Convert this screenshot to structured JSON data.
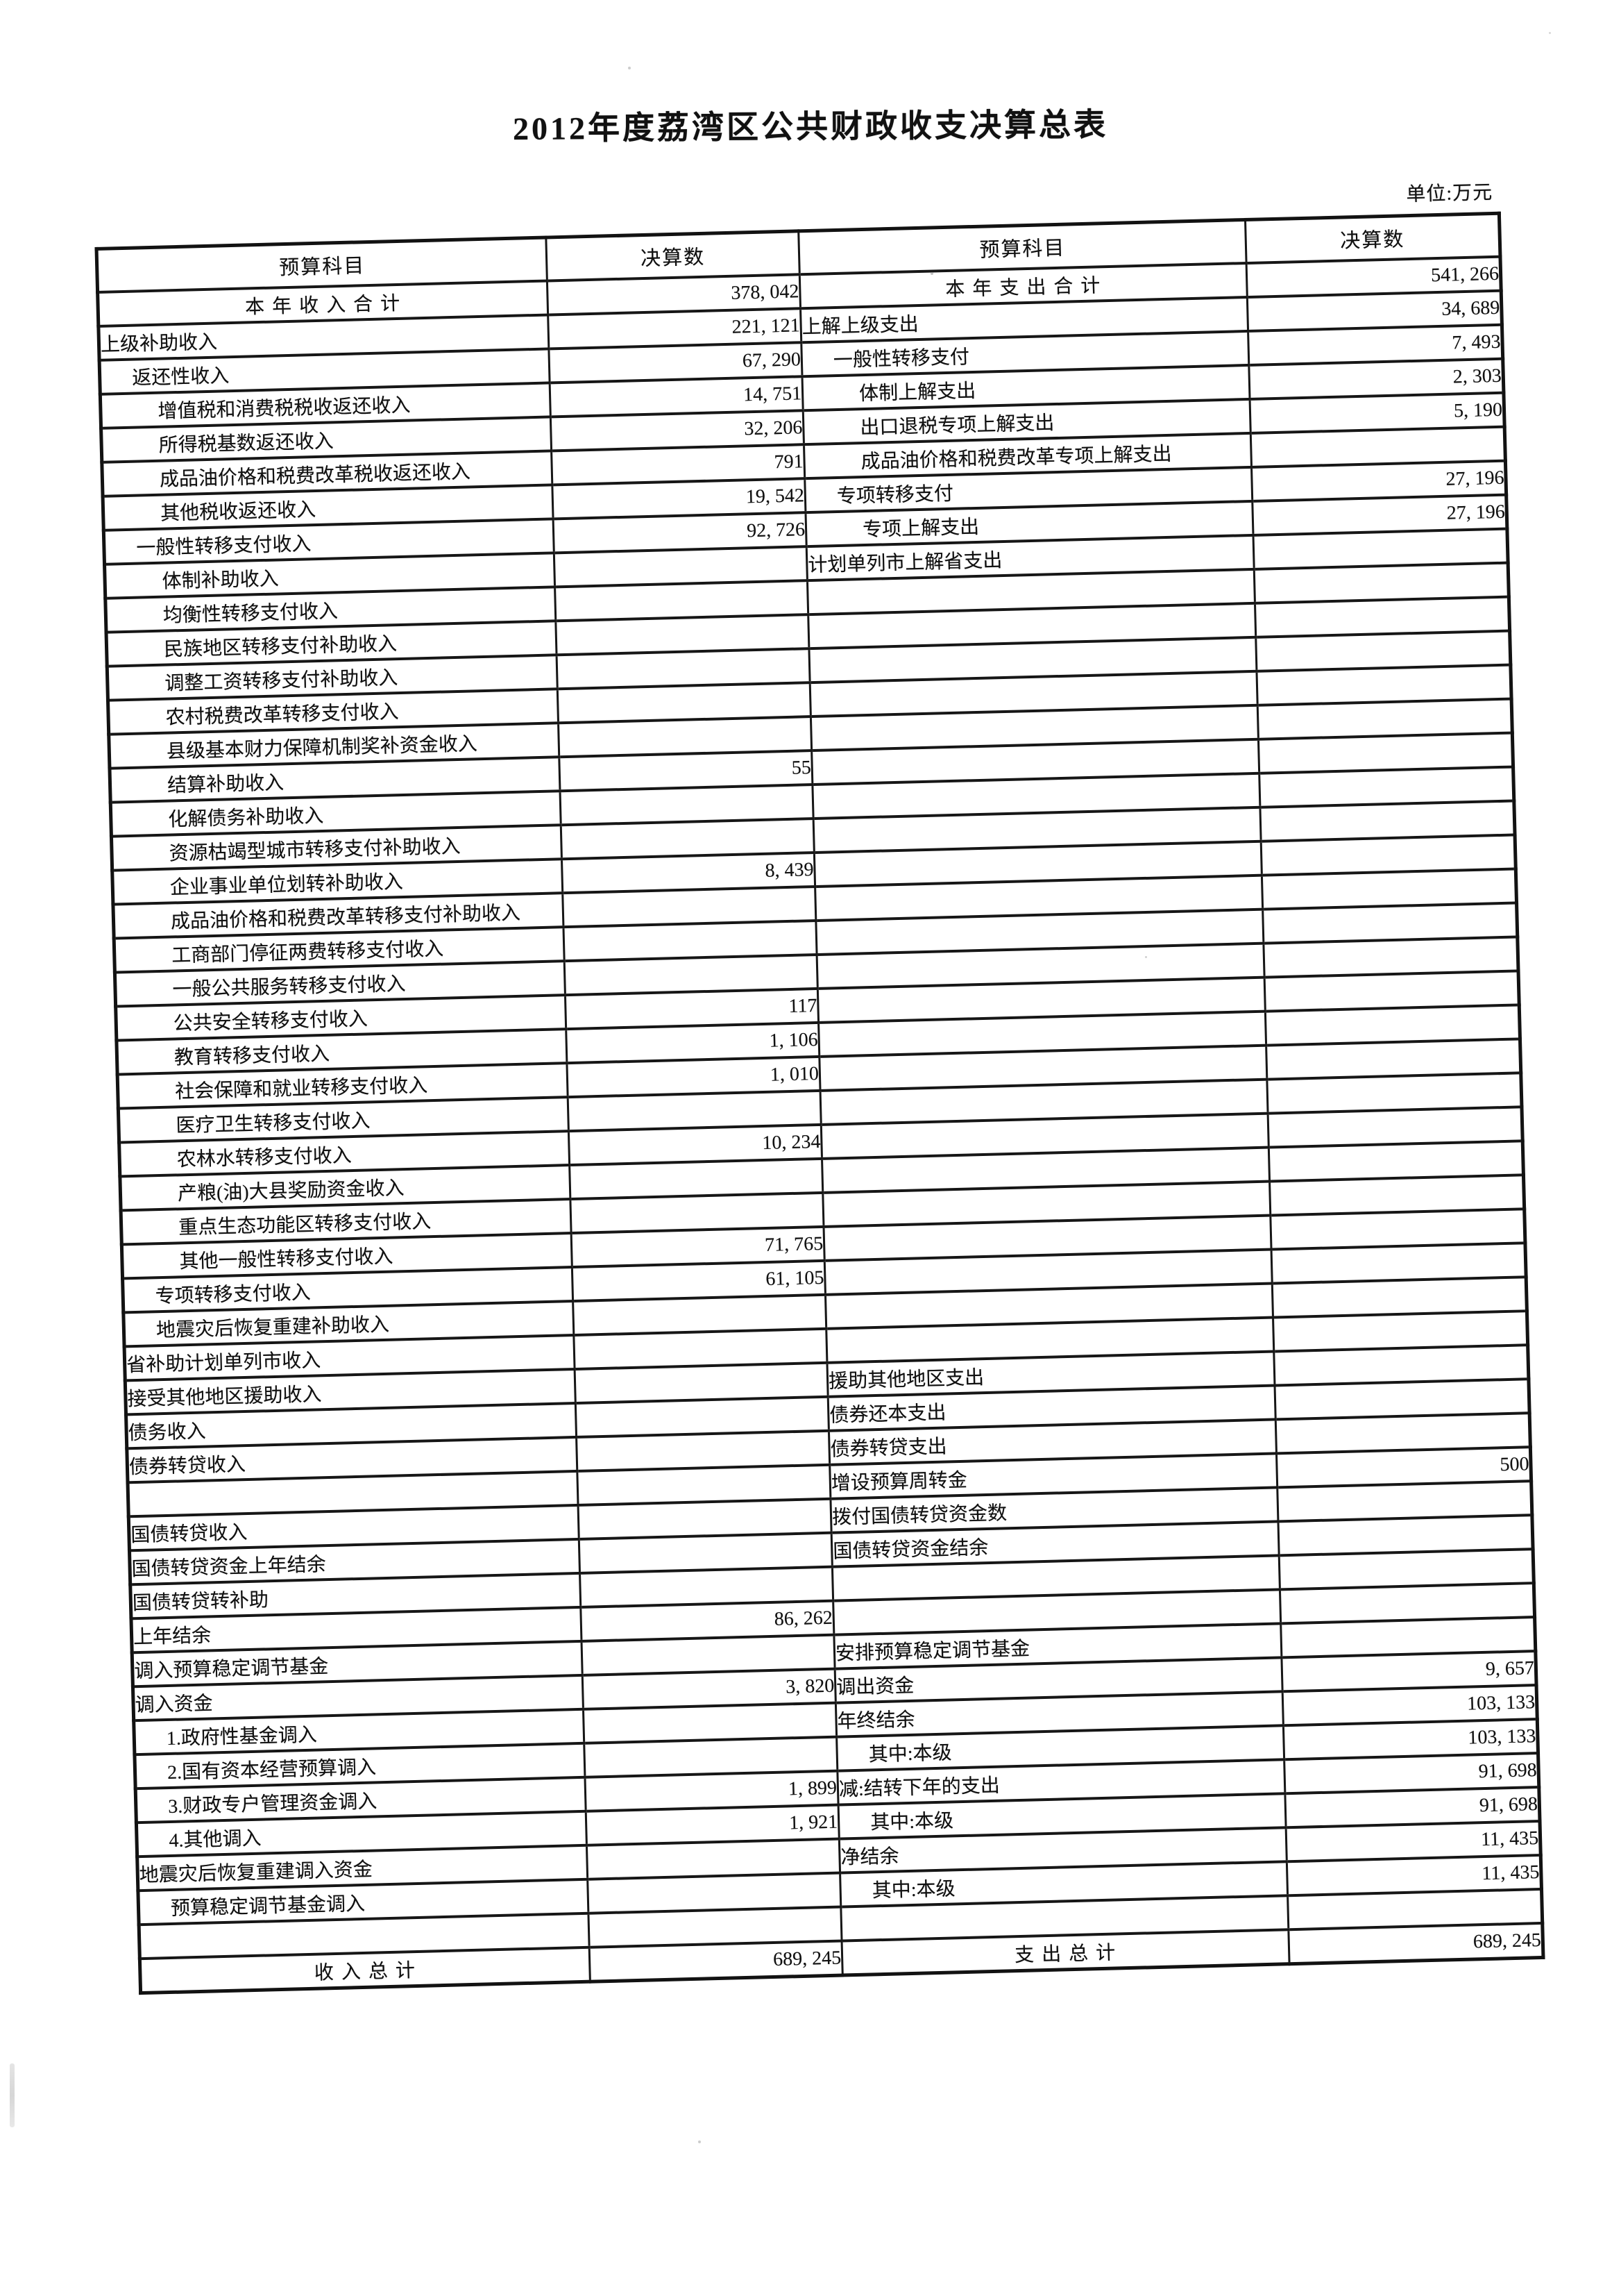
{
  "page": {
    "title": "2012年度荔湾区公共财政收支决算总表",
    "unit_label": "单位:万元"
  },
  "table": {
    "headers": {
      "subject": "预算科目",
      "amount": "决算数"
    },
    "rows": [
      {
        "left": {
          "label": "本 年 收 入 合 计",
          "value": "378, 042",
          "indent": 0,
          "center": true
        },
        "right": {
          "label": "本 年 支 出 合 计",
          "value": "541, 266",
          "indent": 0,
          "center": true
        }
      },
      {
        "left": {
          "label": "上级补助收入",
          "value": "221, 121",
          "indent": 0
        },
        "right": {
          "label": "上解上级支出",
          "value": "34, 689",
          "indent": 0
        }
      },
      {
        "left": {
          "label": "返还性收入",
          "value": "67, 290",
          "indent": 1
        },
        "right": {
          "label": "一般性转移支付",
          "value": "7, 493",
          "indent": 1
        }
      },
      {
        "left": {
          "label": "增值税和消费税税收返还收入",
          "value": "14, 751",
          "indent": 2
        },
        "right": {
          "label": "体制上解支出",
          "value": "2, 303",
          "indent": 2
        }
      },
      {
        "left": {
          "label": "所得税基数返还收入",
          "value": "32, 206",
          "indent": 2
        },
        "right": {
          "label": "出口退税专项上解支出",
          "value": "5, 190",
          "indent": 2
        }
      },
      {
        "left": {
          "label": "成品油价格和税费改革税收返还收入",
          "value": "791",
          "indent": 2
        },
        "right": {
          "label": "成品油价格和税费改革专项上解支出",
          "value": "",
          "indent": 2
        }
      },
      {
        "left": {
          "label": "其他税收返还收入",
          "value": "19, 542",
          "indent": 2
        },
        "right": {
          "label": "专项转移支付",
          "value": "27, 196",
          "indent": 1
        }
      },
      {
        "left": {
          "label": "一般性转移支付收入",
          "value": "92, 726",
          "indent": 1
        },
        "right": {
          "label": "专项上解支出",
          "value": "27, 196",
          "indent": 2
        }
      },
      {
        "left": {
          "label": "体制补助收入",
          "value": "",
          "indent": 2
        },
        "right": {
          "label": "计划单列市上解省支出",
          "value": "",
          "indent": 0
        }
      },
      {
        "left": {
          "label": "均衡性转移支付收入",
          "value": "",
          "indent": 2
        },
        "right": {
          "label": "",
          "value": "",
          "indent": 0
        }
      },
      {
        "left": {
          "label": "民族地区转移支付补助收入",
          "value": "",
          "indent": 2
        },
        "right": {
          "label": "",
          "value": "",
          "indent": 0
        }
      },
      {
        "left": {
          "label": "调整工资转移支付补助收入",
          "value": "",
          "indent": 2
        },
        "right": {
          "label": "",
          "value": "",
          "indent": 0
        }
      },
      {
        "left": {
          "label": "农村税费改革转移支付收入",
          "value": "",
          "indent": 2
        },
        "right": {
          "label": "",
          "value": "",
          "indent": 0
        }
      },
      {
        "left": {
          "label": "县级基本财力保障机制奖补资金收入",
          "value": "",
          "indent": 2
        },
        "right": {
          "label": "",
          "value": "",
          "indent": 0
        }
      },
      {
        "left": {
          "label": "结算补助收入",
          "value": "55",
          "indent": 2
        },
        "right": {
          "label": "",
          "value": "",
          "indent": 0
        }
      },
      {
        "left": {
          "label": "化解债务补助收入",
          "value": "",
          "indent": 2
        },
        "right": {
          "label": "",
          "value": "",
          "indent": 0
        }
      },
      {
        "left": {
          "label": "资源枯竭型城市转移支付补助收入",
          "value": "",
          "indent": 2
        },
        "right": {
          "label": "",
          "value": "",
          "indent": 0
        }
      },
      {
        "left": {
          "label": "企业事业单位划转补助收入",
          "value": "8, 439",
          "indent": 2
        },
        "right": {
          "label": "",
          "value": "",
          "indent": 0
        }
      },
      {
        "left": {
          "label": "成品油价格和税费改革转移支付补助收入",
          "value": "",
          "indent": 2
        },
        "right": {
          "label": "",
          "value": "",
          "indent": 0
        }
      },
      {
        "left": {
          "label": "工商部门停征两费转移支付收入",
          "value": "",
          "indent": 2
        },
        "right": {
          "label": "",
          "value": "",
          "indent": 0
        }
      },
      {
        "left": {
          "label": "一般公共服务转移支付收入",
          "value": "",
          "indent": 2
        },
        "right": {
          "label": "",
          "value": "",
          "indent": 0
        }
      },
      {
        "left": {
          "label": "公共安全转移支付收入",
          "value": "117",
          "indent": 2
        },
        "right": {
          "label": "",
          "value": "",
          "indent": 0
        }
      },
      {
        "left": {
          "label": "教育转移支付收入",
          "value": "1, 106",
          "indent": 2
        },
        "right": {
          "label": "",
          "value": "",
          "indent": 0
        }
      },
      {
        "left": {
          "label": "社会保障和就业转移支付收入",
          "value": "1, 010",
          "indent": 2
        },
        "right": {
          "label": "",
          "value": "",
          "indent": 0
        }
      },
      {
        "left": {
          "label": "医疗卫生转移支付收入",
          "value": "",
          "indent": 2
        },
        "right": {
          "label": "",
          "value": "",
          "indent": 0
        }
      },
      {
        "left": {
          "label": "农林水转移支付收入",
          "value": "10, 234",
          "indent": 2
        },
        "right": {
          "label": "",
          "value": "",
          "indent": 0
        }
      },
      {
        "left": {
          "label": "产粮(油)大县奖励资金收入",
          "value": "",
          "indent": 2
        },
        "right": {
          "label": "",
          "value": "",
          "indent": 0
        }
      },
      {
        "left": {
          "label": "重点生态功能区转移支付收入",
          "value": "",
          "indent": 2
        },
        "right": {
          "label": "",
          "value": "",
          "indent": 0
        }
      },
      {
        "left": {
          "label": "其他一般性转移支付收入",
          "value": "71, 765",
          "indent": 2
        },
        "right": {
          "label": "",
          "value": "",
          "indent": 0
        }
      },
      {
        "left": {
          "label": "专项转移支付收入",
          "value": "61, 105",
          "indent": 1
        },
        "right": {
          "label": "",
          "value": "",
          "indent": 0
        }
      },
      {
        "left": {
          "label": "地震灾后恢复重建补助收入",
          "value": "",
          "indent": 1
        },
        "right": {
          "label": "",
          "value": "",
          "indent": 0
        }
      },
      {
        "left": {
          "label": "省补助计划单列市收入",
          "value": "",
          "indent": 0
        },
        "right": {
          "label": "",
          "value": "",
          "indent": 0
        }
      },
      {
        "left": {
          "label": "接受其他地区援助收入",
          "value": "",
          "indent": 0
        },
        "right": {
          "label": "援助其他地区支出",
          "value": "",
          "indent": 0
        }
      },
      {
        "left": {
          "label": "债务收入",
          "value": "",
          "indent": 0
        },
        "right": {
          "label": "债券还本支出",
          "value": "",
          "indent": 0
        }
      },
      {
        "left": {
          "label": "债券转贷收入",
          "value": "",
          "indent": 0
        },
        "right": {
          "label": "债券转贷支出",
          "value": "",
          "indent": 0
        }
      },
      {
        "left": {
          "label": "",
          "value": "",
          "indent": 0
        },
        "right": {
          "label": "增设预算周转金",
          "value": "500",
          "indent": 0
        }
      },
      {
        "left": {
          "label": "国债转贷收入",
          "value": "",
          "indent": 0
        },
        "right": {
          "label": "拨付国债转贷资金数",
          "value": "",
          "indent": 0
        }
      },
      {
        "left": {
          "label": "国债转贷资金上年结余",
          "value": "",
          "indent": 0
        },
        "right": {
          "label": "国债转贷资金结余",
          "value": "",
          "indent": 0
        }
      },
      {
        "left": {
          "label": "国债转贷转补助",
          "value": "",
          "indent": 0
        },
        "right": {
          "label": "",
          "value": "",
          "indent": 0
        }
      },
      {
        "left": {
          "label": "上年结余",
          "value": "86, 262",
          "indent": 0
        },
        "right": {
          "label": "",
          "value": "",
          "indent": 0
        }
      },
      {
        "left": {
          "label": "调入预算稳定调节基金",
          "value": "",
          "indent": 0
        },
        "right": {
          "label": "安排预算稳定调节基金",
          "value": "",
          "indent": 0
        }
      },
      {
        "left": {
          "label": "调入资金",
          "value": "3, 820",
          "indent": 0
        },
        "right": {
          "label": "调出资金",
          "value": "9, 657",
          "indent": 0
        }
      },
      {
        "left": {
          "label": "1.政府性基金调入",
          "value": "",
          "indent": 1
        },
        "right": {
          "label": "年终结余",
          "value": "103, 133",
          "indent": 0
        }
      },
      {
        "left": {
          "label": "2.国有资本经营预算调入",
          "value": "",
          "indent": 1
        },
        "right": {
          "label": "其中:本级",
          "value": "103, 133",
          "indent": 1
        }
      },
      {
        "left": {
          "label": "3.财政专户管理资金调入",
          "value": "1, 899",
          "indent": 1
        },
        "right": {
          "label": "减:结转下年的支出",
          "value": "91, 698",
          "indent": 0
        }
      },
      {
        "left": {
          "label": "4.其他调入",
          "value": "1, 921",
          "indent": 1
        },
        "right": {
          "label": "其中:本级",
          "value": "91, 698",
          "indent": 1
        }
      },
      {
        "left": {
          "label": "地震灾后恢复重建调入资金",
          "value": "",
          "indent": 0
        },
        "right": {
          "label": "净结余",
          "value": "11, 435",
          "indent": 0
        }
      },
      {
        "left": {
          "label": "预算稳定调节基金调入",
          "value": "",
          "indent": 1
        },
        "right": {
          "label": "其中:本级",
          "value": "11, 435",
          "indent": 1
        }
      },
      {
        "left": {
          "label": "",
          "value": "",
          "indent": 0
        },
        "right": {
          "label": "",
          "value": "",
          "indent": 0
        }
      },
      {
        "left": {
          "label": "收  入  总  计",
          "value": "689, 245",
          "indent": 0,
          "center": true
        },
        "right": {
          "label": "支  出  总  计",
          "value": "689, 245",
          "indent": 0,
          "center": true
        }
      }
    ]
  }
}
